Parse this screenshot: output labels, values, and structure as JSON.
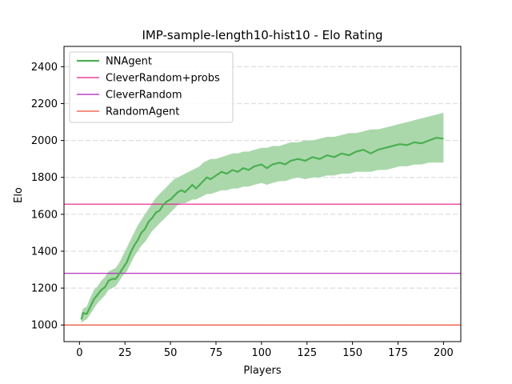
{
  "chart_data": {
    "type": "line",
    "title": "IMP-sample-length10-hist10 - Elo Rating",
    "xlabel": "Players",
    "ylabel": "Elo",
    "xlim": [
      -8.5,
      209.5
    ],
    "ylim": [
      910,
      2510
    ],
    "xticks": [
      0,
      25,
      50,
      75,
      100,
      125,
      150,
      175,
      200
    ],
    "yticks": [
      1000,
      1200,
      1400,
      1600,
      1800,
      2000,
      2200,
      2400
    ],
    "grid": "horizontal-dashed",
    "legend_position": "upper-left",
    "series": [
      {
        "name": "NNAgent",
        "kind": "line-with-band",
        "color": "#4caf50",
        "band_color": "#a5d6a7",
        "x": [
          1,
          2,
          4,
          6,
          8,
          10,
          12,
          14,
          16,
          18,
          20,
          22,
          24,
          26,
          28,
          30,
          32,
          34,
          36,
          38,
          40,
          42,
          44,
          46,
          48,
          50,
          52,
          54,
          56,
          58,
          60,
          62,
          64,
          66,
          68,
          70,
          72,
          75,
          78,
          81,
          84,
          87,
          90,
          93,
          96,
          100,
          103,
          106,
          110,
          113,
          116,
          120,
          124,
          128,
          132,
          136,
          140,
          144,
          148,
          152,
          156,
          160,
          164,
          168,
          172,
          176,
          180,
          184,
          188,
          192,
          196,
          200
        ],
        "values": [
          1030,
          1065,
          1060,
          1100,
          1140,
          1165,
          1190,
          1205,
          1240,
          1250,
          1250,
          1280,
          1310,
          1340,
          1390,
          1430,
          1460,
          1500,
          1520,
          1560,
          1580,
          1610,
          1620,
          1650,
          1670,
          1680,
          1700,
          1720,
          1730,
          1720,
          1740,
          1760,
          1740,
          1760,
          1780,
          1800,
          1790,
          1810,
          1830,
          1820,
          1840,
          1830,
          1850,
          1840,
          1860,
          1870,
          1850,
          1870,
          1880,
          1870,
          1890,
          1900,
          1890,
          1910,
          1900,
          1920,
          1910,
          1930,
          1920,
          1940,
          1950,
          1930,
          1950,
          1960,
          1970,
          1980,
          1975,
          1990,
          1985,
          2000,
          2015,
          2010
        ],
        "lower": [
          1010,
          1020,
          1030,
          1060,
          1090,
          1120,
          1140,
          1160,
          1190,
          1200,
          1210,
          1240,
          1270,
          1290,
          1330,
          1370,
          1400,
          1430,
          1450,
          1480,
          1510,
          1530,
          1550,
          1570,
          1590,
          1610,
          1630,
          1650,
          1660,
          1660,
          1670,
          1680,
          1680,
          1690,
          1700,
          1710,
          1710,
          1720,
          1730,
          1730,
          1740,
          1740,
          1750,
          1750,
          1760,
          1770,
          1760,
          1770,
          1780,
          1780,
          1790,
          1800,
          1790,
          1800,
          1800,
          1810,
          1810,
          1820,
          1820,
          1830,
          1830,
          1830,
          1840,
          1840,
          1850,
          1860,
          1860,
          1870,
          1870,
          1880,
          1880,
          1880
        ],
        "upper": [
          1060,
          1090,
          1100,
          1150,
          1190,
          1210,
          1240,
          1260,
          1290,
          1300,
          1310,
          1340,
          1380,
          1420,
          1460,
          1500,
          1540,
          1570,
          1600,
          1630,
          1660,
          1690,
          1710,
          1730,
          1750,
          1770,
          1790,
          1800,
          1810,
          1820,
          1830,
          1840,
          1850,
          1860,
          1880,
          1890,
          1900,
          1900,
          1910,
          1920,
          1930,
          1930,
          1940,
          1940,
          1950,
          1960,
          1960,
          1970,
          1970,
          1980,
          1990,
          1990,
          2000,
          2000,
          2010,
          2020,
          2020,
          2030,
          2040,
          2040,
          2050,
          2060,
          2060,
          2070,
          2080,
          2090,
          2100,
          2110,
          2120,
          2130,
          2140,
          2150
        ]
      },
      {
        "name": "CleverRandom+probs",
        "kind": "hline",
        "color": "#e6198a",
        "value": 1655
      },
      {
        "name": "CleverRandom",
        "kind": "hline",
        "color": "#b01cb8",
        "value": 1280
      },
      {
        "name": "RandomAgent",
        "kind": "hline",
        "color": "#ee4c36",
        "value": 1000
      }
    ]
  }
}
